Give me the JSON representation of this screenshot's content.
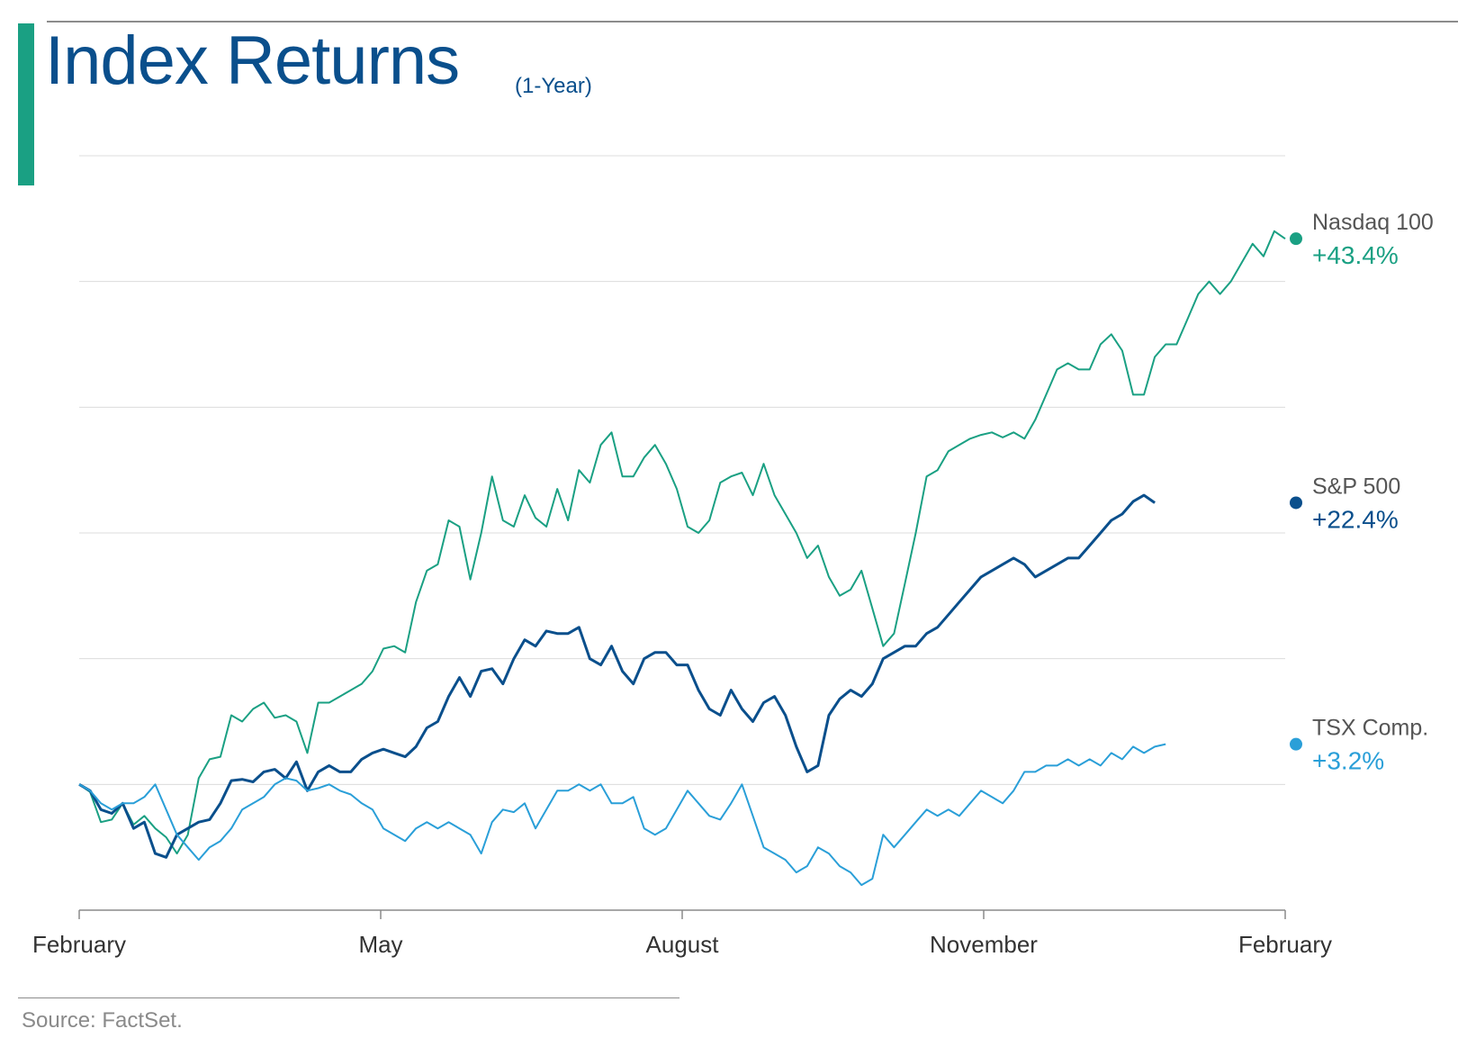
{
  "header": {
    "title": "Index Returns",
    "subtitle": "(1-Year)"
  },
  "footer": {
    "source": "Source: FactSet."
  },
  "colors": {
    "accent": "#1aa083",
    "title": "#0a4f8c"
  },
  "chart_data": {
    "type": "line",
    "title": "Index Returns",
    "subtitle": "(1-Year)",
    "xlabel": "",
    "ylabel": "",
    "x_ticks": [
      "February",
      "May",
      "August",
      "November",
      "February"
    ],
    "ylim": [
      -10,
      50
    ],
    "y_gridlines": [
      -10,
      0,
      10,
      20,
      30,
      40,
      50
    ],
    "grid": true,
    "legend": "end-labels-right",
    "series": [
      {
        "name": "Nasdaq 100",
        "value_label": "+43.4%",
        "color": "#1aa083",
        "points": [
          [
            0,
            0
          ],
          [
            1,
            -0.6
          ],
          [
            2,
            -3
          ],
          [
            3,
            -2.8
          ],
          [
            4,
            -1.5
          ],
          [
            5,
            -3.2
          ],
          [
            6,
            -2.5
          ],
          [
            7,
            -3.5
          ],
          [
            8,
            -4.2
          ],
          [
            9,
            -5.5
          ],
          [
            10,
            -4
          ],
          [
            11,
            0.5
          ],
          [
            12,
            2
          ],
          [
            13,
            2.2
          ],
          [
            14,
            5.5
          ],
          [
            15,
            5
          ],
          [
            16,
            6
          ],
          [
            17,
            6.5
          ],
          [
            18,
            5.3
          ],
          [
            19,
            5.5
          ],
          [
            20,
            5
          ],
          [
            21,
            2.5
          ],
          [
            22,
            6.5
          ],
          [
            23,
            6.5
          ],
          [
            24,
            7
          ],
          [
            25,
            7.5
          ],
          [
            26,
            8
          ],
          [
            27,
            9
          ],
          [
            28,
            10.8
          ],
          [
            29,
            11
          ],
          [
            30,
            10.5
          ],
          [
            31,
            14.5
          ],
          [
            32,
            17
          ],
          [
            33,
            17.5
          ],
          [
            34,
            21
          ],
          [
            35,
            20.5
          ],
          [
            36,
            16.3
          ],
          [
            37,
            20
          ],
          [
            38,
            24.5
          ],
          [
            39,
            21
          ],
          [
            40,
            20.5
          ],
          [
            41,
            23
          ],
          [
            42,
            21.2
          ],
          [
            43,
            20.5
          ],
          [
            44,
            23.5
          ],
          [
            45,
            21
          ],
          [
            46,
            25
          ],
          [
            47,
            24
          ],
          [
            48,
            27
          ],
          [
            49,
            28
          ],
          [
            50,
            24.5
          ],
          [
            51,
            24.5
          ],
          [
            52,
            26
          ],
          [
            53,
            27
          ],
          [
            54,
            25.5
          ],
          [
            55,
            23.5
          ],
          [
            56,
            20.5
          ],
          [
            57,
            20
          ],
          [
            58,
            21
          ],
          [
            59,
            24
          ],
          [
            60,
            24.5
          ],
          [
            61,
            24.8
          ],
          [
            62,
            23
          ],
          [
            63,
            25.5
          ],
          [
            64,
            23
          ],
          [
            65,
            21.5
          ],
          [
            66,
            20
          ],
          [
            67,
            18
          ],
          [
            68,
            19
          ],
          [
            69,
            16.5
          ],
          [
            70,
            15
          ],
          [
            71,
            15.5
          ],
          [
            72,
            17
          ],
          [
            73,
            14
          ],
          [
            74,
            11
          ],
          [
            75,
            12
          ],
          [
            76,
            16
          ],
          [
            77,
            20
          ],
          [
            78,
            24.5
          ],
          [
            79,
            25
          ],
          [
            80,
            26.5
          ],
          [
            81,
            27
          ],
          [
            82,
            27.5
          ],
          [
            83,
            27.8
          ],
          [
            84,
            28
          ],
          [
            85,
            27.6
          ],
          [
            86,
            28
          ],
          [
            87,
            27.5
          ],
          [
            88,
            29
          ],
          [
            89,
            31
          ],
          [
            90,
            33
          ],
          [
            91,
            33.5
          ],
          [
            92,
            33
          ],
          [
            93,
            33
          ],
          [
            94,
            35
          ],
          [
            95,
            35.8
          ],
          [
            96,
            34.5
          ],
          [
            97,
            31
          ],
          [
            98,
            31
          ],
          [
            99,
            34
          ],
          [
            100,
            35
          ],
          [
            101,
            35
          ],
          [
            102,
            37
          ],
          [
            103,
            39
          ],
          [
            104,
            40
          ],
          [
            105,
            39
          ],
          [
            106,
            40
          ],
          [
            107,
            41.5
          ],
          [
            108,
            43
          ],
          [
            109,
            42
          ],
          [
            110,
            44
          ],
          [
            111,
            43.4
          ]
        ]
      },
      {
        "name": "S&P 500",
        "value_label": "+22.4%",
        "color": "#0a4f8c",
        "points": [
          [
            0,
            0
          ],
          [
            1,
            -0.5
          ],
          [
            2,
            -2
          ],
          [
            3,
            -2.3
          ],
          [
            4,
            -1.5
          ],
          [
            5,
            -3.5
          ],
          [
            6,
            -3
          ],
          [
            7,
            -5.5
          ],
          [
            8,
            -5.8
          ],
          [
            9,
            -4
          ],
          [
            10,
            -3.5
          ],
          [
            11,
            -3
          ],
          [
            12,
            -2.8
          ],
          [
            13,
            -1.5
          ],
          [
            14,
            0.3
          ],
          [
            15,
            0.4
          ],
          [
            16,
            0.2
          ],
          [
            17,
            1
          ],
          [
            18,
            1.2
          ],
          [
            19,
            0.5
          ],
          [
            20,
            1.8
          ],
          [
            21,
            -0.5
          ],
          [
            22,
            1
          ],
          [
            23,
            1.5
          ],
          [
            24,
            1
          ],
          [
            25,
            1
          ],
          [
            26,
            2
          ],
          [
            27,
            2.5
          ],
          [
            28,
            2.8
          ],
          [
            29,
            2.5
          ],
          [
            30,
            2.2
          ],
          [
            31,
            3
          ],
          [
            32,
            4.5
          ],
          [
            33,
            5
          ],
          [
            34,
            7
          ],
          [
            35,
            8.5
          ],
          [
            36,
            7
          ],
          [
            37,
            9
          ],
          [
            38,
            9.2
          ],
          [
            39,
            8
          ],
          [
            40,
            10
          ],
          [
            41,
            11.5
          ],
          [
            42,
            11
          ],
          [
            43,
            12.2
          ],
          [
            44,
            12
          ],
          [
            45,
            12
          ],
          [
            46,
            12.5
          ],
          [
            47,
            10
          ],
          [
            48,
            9.5
          ],
          [
            49,
            11
          ],
          [
            50,
            9
          ],
          [
            51,
            8
          ],
          [
            52,
            10
          ],
          [
            53,
            10.5
          ],
          [
            54,
            10.5
          ],
          [
            55,
            9.5
          ],
          [
            56,
            9.5
          ],
          [
            57,
            7.5
          ],
          [
            58,
            6
          ],
          [
            59,
            5.5
          ],
          [
            60,
            7.5
          ],
          [
            61,
            6
          ],
          [
            62,
            5
          ],
          [
            63,
            6.5
          ],
          [
            64,
            7
          ],
          [
            65,
            5.5
          ],
          [
            66,
            3
          ],
          [
            67,
            1
          ],
          [
            68,
            1.5
          ],
          [
            69,
            5.5
          ],
          [
            70,
            6.8
          ],
          [
            71,
            7.5
          ],
          [
            72,
            7
          ],
          [
            73,
            8
          ],
          [
            74,
            10
          ],
          [
            75,
            10.5
          ],
          [
            76,
            11
          ],
          [
            77,
            11
          ],
          [
            78,
            12
          ],
          [
            79,
            12.5
          ],
          [
            80,
            13.5
          ],
          [
            81,
            14.5
          ],
          [
            82,
            15.5
          ],
          [
            83,
            16.5
          ],
          [
            84,
            17
          ],
          [
            85,
            17.5
          ],
          [
            86,
            18
          ],
          [
            87,
            17.5
          ],
          [
            88,
            16.5
          ],
          [
            89,
            17
          ],
          [
            90,
            17.5
          ],
          [
            91,
            18
          ],
          [
            92,
            18
          ],
          [
            93,
            19
          ],
          [
            94,
            20
          ],
          [
            95,
            21
          ],
          [
            96,
            21.5
          ],
          [
            97,
            22.5
          ],
          [
            98,
            23
          ],
          [
            99,
            22.4
          ]
        ]
      },
      {
        "name": "TSX Comp.",
        "value_label": "+3.2%",
        "color": "#2a9fd8",
        "points": [
          [
            0,
            0
          ],
          [
            1,
            -0.5
          ],
          [
            2,
            -1.5
          ],
          [
            3,
            -2
          ],
          [
            4,
            -1.5
          ],
          [
            5,
            -1.5
          ],
          [
            6,
            -1
          ],
          [
            7,
            0
          ],
          [
            8,
            -2
          ],
          [
            9,
            -4
          ],
          [
            10,
            -5
          ],
          [
            11,
            -6
          ],
          [
            12,
            -5
          ],
          [
            13,
            -4.5
          ],
          [
            14,
            -3.5
          ],
          [
            15,
            -2
          ],
          [
            16,
            -1.5
          ],
          [
            17,
            -1
          ],
          [
            18,
            0
          ],
          [
            19,
            0.5
          ],
          [
            20,
            0.3
          ],
          [
            21,
            -0.5
          ],
          [
            22,
            -0.3
          ],
          [
            23,
            0
          ],
          [
            24,
            -0.5
          ],
          [
            25,
            -0.8
          ],
          [
            26,
            -1.5
          ],
          [
            27,
            -2
          ],
          [
            28,
            -3.5
          ],
          [
            29,
            -4
          ],
          [
            30,
            -4.5
          ],
          [
            31,
            -3.5
          ],
          [
            32,
            -3
          ],
          [
            33,
            -3.5
          ],
          [
            34,
            -3
          ],
          [
            35,
            -3.5
          ],
          [
            36,
            -4
          ],
          [
            37,
            -5.5
          ],
          [
            38,
            -3
          ],
          [
            39,
            -2
          ],
          [
            40,
            -2.2
          ],
          [
            41,
            -1.5
          ],
          [
            42,
            -3.5
          ],
          [
            43,
            -2
          ],
          [
            44,
            -0.5
          ],
          [
            45,
            -0.5
          ],
          [
            46,
            0
          ],
          [
            47,
            -0.5
          ],
          [
            48,
            0
          ],
          [
            49,
            -1.5
          ],
          [
            50,
            -1.5
          ],
          [
            51,
            -1
          ],
          [
            52,
            -3.5
          ],
          [
            53,
            -4
          ],
          [
            54,
            -3.5
          ],
          [
            55,
            -2
          ],
          [
            56,
            -0.5
          ],
          [
            57,
            -1.5
          ],
          [
            58,
            -2.5
          ],
          [
            59,
            -2.8
          ],
          [
            60,
            -1.5
          ],
          [
            61,
            0
          ],
          [
            62,
            -2.5
          ],
          [
            63,
            -5
          ],
          [
            64,
            -5.5
          ],
          [
            65,
            -6
          ],
          [
            66,
            -7
          ],
          [
            67,
            -6.5
          ],
          [
            68,
            -5
          ],
          [
            69,
            -5.5
          ],
          [
            70,
            -6.5
          ],
          [
            71,
            -7
          ],
          [
            72,
            -8
          ],
          [
            73,
            -7.5
          ],
          [
            74,
            -4
          ],
          [
            75,
            -5
          ],
          [
            76,
            -4
          ],
          [
            77,
            -3
          ],
          [
            78,
            -2
          ],
          [
            79,
            -2.5
          ],
          [
            80,
            -2
          ],
          [
            81,
            -2.5
          ],
          [
            82,
            -1.5
          ],
          [
            83,
            -0.5
          ],
          [
            84,
            -1
          ],
          [
            85,
            -1.5
          ],
          [
            86,
            -0.5
          ],
          [
            87,
            1
          ],
          [
            88,
            1
          ],
          [
            89,
            1.5
          ],
          [
            90,
            1.5
          ],
          [
            91,
            2
          ],
          [
            92,
            1.5
          ],
          [
            93,
            2
          ],
          [
            94,
            1.5
          ],
          [
            95,
            2.5
          ],
          [
            96,
            2
          ],
          [
            97,
            3
          ],
          [
            98,
            2.5
          ],
          [
            99,
            3
          ],
          [
            100,
            3.2
          ]
        ]
      }
    ]
  }
}
